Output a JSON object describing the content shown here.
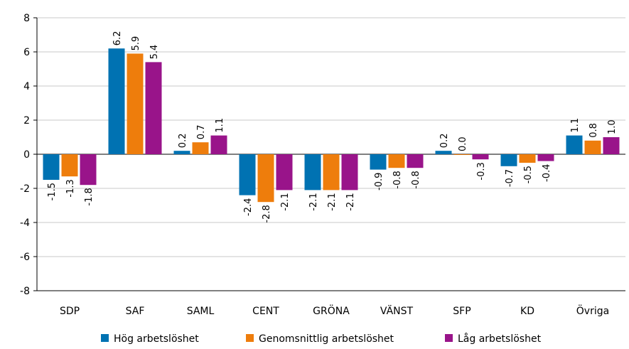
{
  "chart_data": {
    "type": "bar",
    "title": "",
    "xlabel": "",
    "ylabel": "",
    "ylim": [
      -8,
      8
    ],
    "yticks": [
      8,
      6,
      4,
      2,
      0,
      -2,
      -4,
      -6,
      -8
    ],
    "grid": true,
    "legend_position": "bottom",
    "categories": [
      "SDP",
      "SAF",
      "SAML",
      "CENT",
      "GRÖNA",
      "VÄNST",
      "SFP",
      "KD",
      "Övriga"
    ],
    "series": [
      {
        "name": "Hög arbetslöshet",
        "color": "#0072b2",
        "values": [
          -1.5,
          6.2,
          0.2,
          -2.4,
          -2.1,
          -0.9,
          0.2,
          -0.7,
          1.1
        ]
      },
      {
        "name": "Genomsnittlig arbetslöshet",
        "color": "#ee7d0c",
        "values": [
          -1.3,
          5.9,
          0.7,
          -2.8,
          -2.1,
          -0.8,
          0.0,
          -0.5,
          0.8
        ]
      },
      {
        "name": "Låg arbetslöshet",
        "color": "#99148a",
        "values": [
          -1.8,
          5.4,
          1.1,
          -2.1,
          -2.1,
          -0.8,
          -0.3,
          -0.4,
          1.0
        ]
      }
    ]
  }
}
